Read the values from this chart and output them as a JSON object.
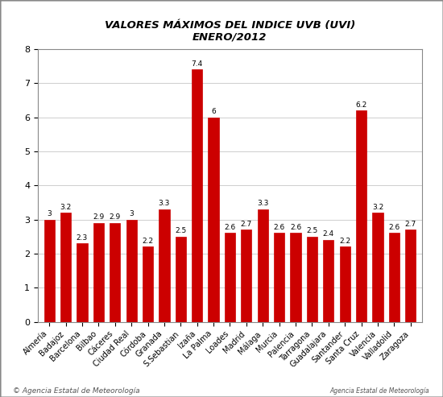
{
  "title_line1": "VALORES MÁXIMOS DEL INDICE UVB (UVI)",
  "title_line2": "ENERO/2012",
  "categories": [
    "Almería",
    "Badajoz",
    "Barcelona",
    "Bilbao",
    "Cáceres",
    "Ciudad Real",
    "Córdoba",
    "Granada",
    "S.Sebastian",
    "Izaña",
    "La Palma",
    "Loades",
    "Madrid",
    "Málaga",
    "Murcia",
    "Palencia",
    "Tarragona",
    "Guadalajara",
    "Santander",
    "Santa Cruz",
    "Valencia",
    "Valladolid",
    "Zaragoza"
  ],
  "values": [
    3.0,
    3.2,
    2.3,
    2.9,
    2.9,
    3.0,
    2.2,
    3.3,
    2.5,
    7.4,
    6.0,
    2.6,
    2.7,
    3.3,
    2.6,
    2.6,
    2.5,
    2.4,
    2.2,
    6.2,
    3.2,
    2.6,
    2.7
  ],
  "bar_color": "#cc0000",
  "background_color": "#ffffff",
  "grid_color": "#bbbbbb",
  "ylim": [
    0,
    8
  ],
  "yticks": [
    0,
    1,
    2,
    3,
    4,
    5,
    6,
    7,
    8
  ],
  "label_fontsize": 7,
  "value_fontsize": 6.5,
  "title_fontsize": 9.5,
  "footnote": "© Agencia Estatal de Meteorología"
}
